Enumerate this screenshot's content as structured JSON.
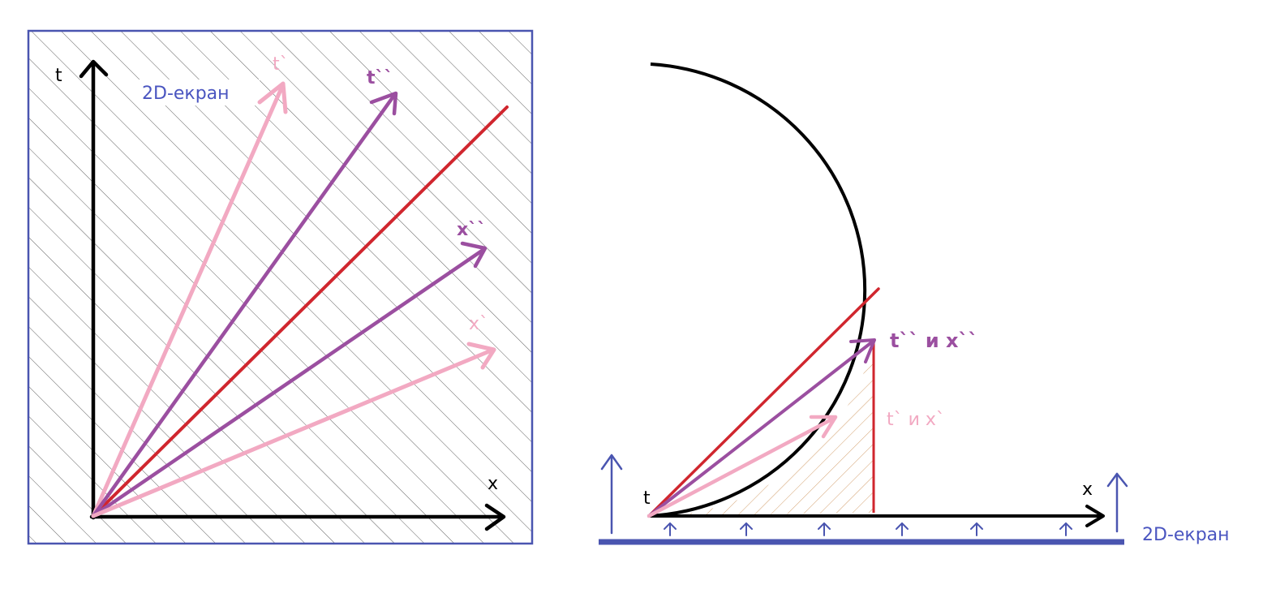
{
  "colors": {
    "axis": "#000000",
    "screen": "#4a55b0",
    "hatch": "#2d2d2d",
    "hatch_orange": "#c8884a",
    "pink": "#f2a9c2",
    "purple": "#9b4fa0",
    "red": "#d0262e",
    "label_screen": "#4a55c0",
    "label_purple": "#9b4fa0",
    "label_pink": "#f2a9c2"
  },
  "left_panel": {
    "axis_t_label": "t",
    "axis_x_label": "x",
    "screen_label": "2D-екран",
    "t_prime_label": "t`",
    "t_double_prime_label": "t``",
    "x_double_prime_label": "x``",
    "x_prime_label": "x`"
  },
  "right_panel": {
    "axis_t_label": "t",
    "axis_x_label": "x",
    "screen_label": "2D-екран",
    "t_x_double_prime_label": "t`` и x``",
    "t_x_prime_label": "t` и x`"
  }
}
